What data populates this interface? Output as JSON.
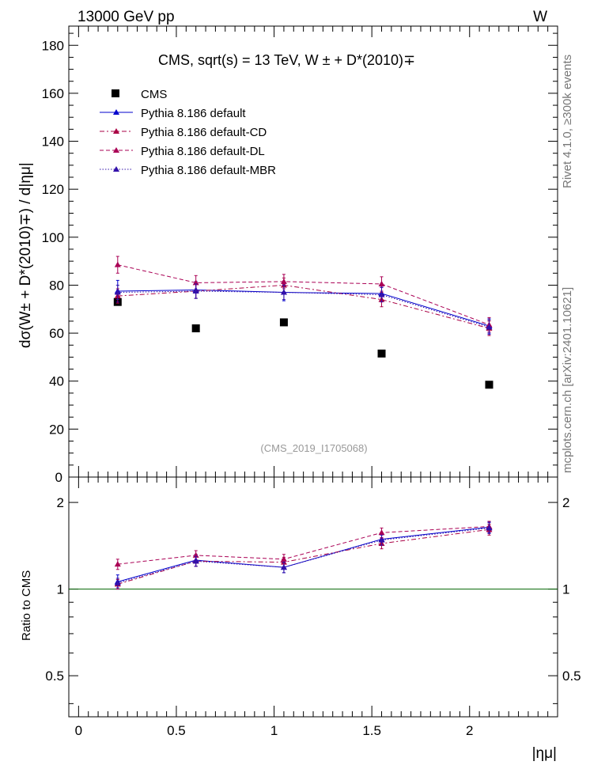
{
  "header": {
    "left": "13000 GeV pp",
    "right": "W"
  },
  "side_labels": {
    "right_top": "Rivet 4.1.0, ≥300k events",
    "right_bottom": "mcplots.cern.ch [arXiv:2401.10621]"
  },
  "colors": {
    "data": "#000000",
    "default": "#0000cc",
    "cd": "#aa0044",
    "dl": "#aa0055",
    "mbr": "#3311aa",
    "ratio_ref": "#006400"
  },
  "chart_data": [
    {
      "type": "scatter",
      "panel": "main",
      "title": "CMS, sqrt(s) = 13 TeV, W ± + D*(2010)∓",
      "watermark": "(CMS_2019_I1705068)",
      "ylabel": "dσ(W± + D*(2010)∓) / d|ημ|",
      "xlabel": "|ημ|",
      "xlim": [
        -0.05,
        2.45
      ],
      "ylim": [
        0,
        188
      ],
      "x_ticks": [
        "0",
        "0.5",
        "1",
        "1.5",
        "2"
      ],
      "y_ticks": [
        "20",
        "40",
        "60",
        "80",
        "100",
        "120",
        "140",
        "160",
        "180"
      ],
      "y_zero_label": "0",
      "x": [
        0.2,
        0.6,
        1.05,
        1.55,
        2.1
      ],
      "series": [
        {
          "name": "CMS",
          "key": "data",
          "style": "marker",
          "values": [
            73.0,
            62.0,
            64.5,
            51.5,
            38.5
          ]
        },
        {
          "name": "Pythia 8.186 default",
          "key": "default",
          "style": "solid",
          "values": [
            77.5,
            78.0,
            77.0,
            76.5,
            63.0
          ],
          "errors": [
            4.5,
            3.5,
            3.5,
            3.0,
            3.0
          ]
        },
        {
          "name": "Pythia 8.186 default-CD",
          "key": "cd",
          "style": "dashdot",
          "values": [
            75.5,
            77.5,
            80.0,
            74.0,
            62.0
          ],
          "errors": [
            3.0,
            3.0,
            3.0,
            3.0,
            3.0
          ]
        },
        {
          "name": "Pythia 8.186 default-DL",
          "key": "dl",
          "style": "dashed",
          "values": [
            88.5,
            81.0,
            81.5,
            80.5,
            63.5
          ],
          "errors": [
            3.5,
            3.0,
            3.0,
            3.0,
            3.0
          ]
        },
        {
          "name": "Pythia 8.186 default-MBR",
          "key": "mbr",
          "style": "dotted",
          "values": [
            77.0,
            77.5,
            77.0,
            76.0,
            62.5
          ],
          "errors": [
            3.0,
            3.0,
            3.0,
            3.0,
            3.0
          ]
        }
      ]
    },
    {
      "type": "line",
      "panel": "ratio",
      "ylabel": "Ratio to CMS",
      "ylim": [
        0.36,
        2.45
      ],
      "y_ticks": [
        "0.5",
        "1",
        "2"
      ],
      "x": [
        0.2,
        0.6,
        1.05,
        1.55,
        2.1
      ],
      "series": [
        {
          "name": "Pythia 8.186 default",
          "key": "default",
          "style": "solid",
          "values": [
            1.06,
            1.26,
            1.19,
            1.49,
            1.64
          ],
          "errors": [
            0.06,
            0.06,
            0.05,
            0.06,
            0.07
          ]
        },
        {
          "name": "Pythia 8.186 default-CD",
          "key": "cd",
          "style": "dashdot",
          "values": [
            1.04,
            1.25,
            1.24,
            1.44,
            1.61
          ],
          "errors": [
            0.04,
            0.05,
            0.05,
            0.06,
            0.07
          ]
        },
        {
          "name": "Pythia 8.186 default-DL",
          "key": "dl",
          "style": "dashed",
          "values": [
            1.22,
            1.31,
            1.27,
            1.57,
            1.65
          ],
          "errors": [
            0.05,
            0.05,
            0.05,
            0.06,
            0.07
          ]
        },
        {
          "name": "Pythia 8.186 default-MBR",
          "key": "mbr",
          "style": "dotted",
          "values": [
            1.05,
            1.25,
            1.19,
            1.48,
            1.63
          ],
          "errors": [
            0.04,
            0.05,
            0.05,
            0.06,
            0.07
          ]
        }
      ]
    }
  ]
}
